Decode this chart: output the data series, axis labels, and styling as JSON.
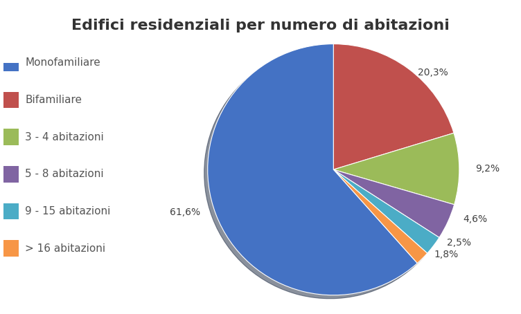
{
  "title": "Edifici residenziali per numero di abitazioni",
  "labels": [
    "Monofamiliare",
    "Bifamiliare",
    "3 - 4 abitazioni",
    "5 - 8 abitazioni",
    "9 - 15 abitazioni",
    "> 16 abitazioni"
  ],
  "plot_order_values": [
    20.3,
    9.2,
    4.6,
    2.5,
    1.8,
    61.6
  ],
  "plot_order_colors": [
    "#C0504D",
    "#9BBB59",
    "#8064A2",
    "#4BACC6",
    "#F79646",
    "#4472C4"
  ],
  "plot_order_pcts": [
    "20,3%",
    "9,2%",
    "4,6%",
    "2,5%",
    "1,8%",
    "61,6%"
  ],
  "legend_labels": [
    "Monofamiliare",
    "Bifamiliare",
    "3 - 4 abitazioni",
    "5 - 8 abitazioni",
    "9 - 15 abitazioni",
    "> 16 abitazioni"
  ],
  "legend_colors": [
    "#4472C4",
    "#C0504D",
    "#9BBB59",
    "#8064A2",
    "#4BACC6",
    "#F79646"
  ],
  "background_color": "#FFFFFF",
  "title_fontsize": 16,
  "legend_fontsize": 11,
  "startangle": 90
}
